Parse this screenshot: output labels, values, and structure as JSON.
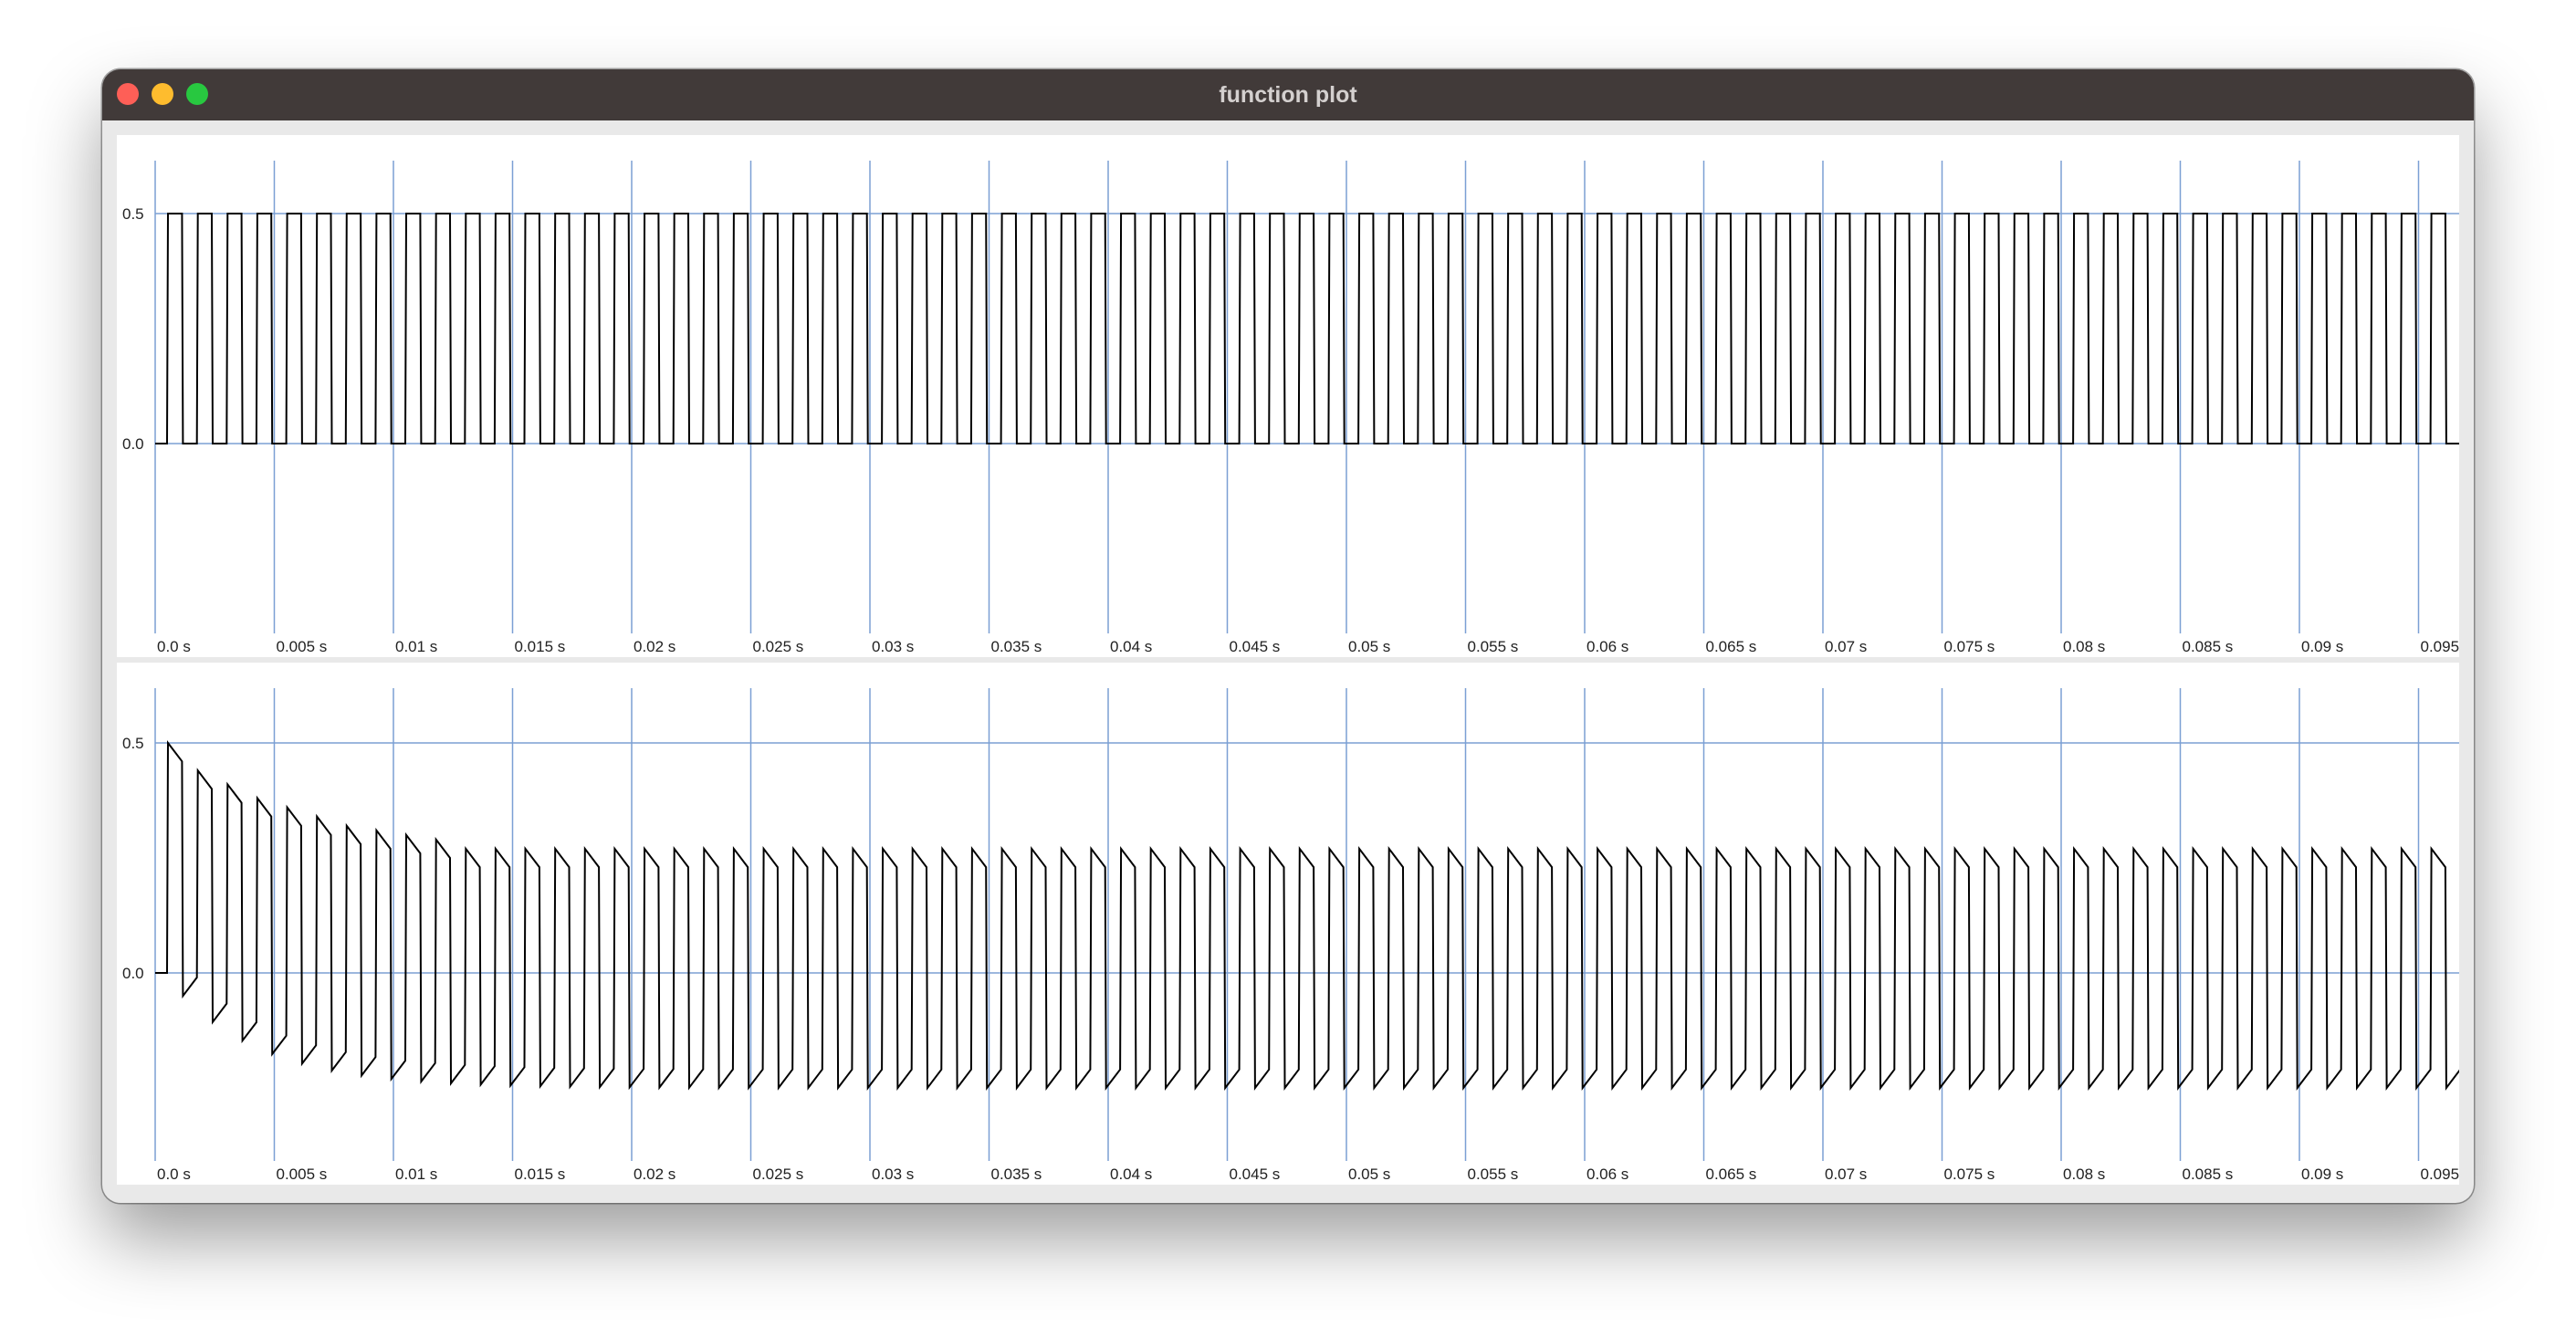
{
  "window": {
    "title": "function plot",
    "controls": [
      "close-button",
      "minimize-button",
      "zoom-button"
    ]
  },
  "colors": {
    "titlebar": "#413a39",
    "grid": "#7b9fd4",
    "trace": "#000000",
    "close": "#fe5f57",
    "minimize": "#febc2e",
    "zoom": "#28c840"
  },
  "chart_data": [
    {
      "type": "line",
      "title": "",
      "x_range": [
        0,
        0.1
      ],
      "y_range": [
        -0.2,
        0.6
      ],
      "x_ticks": [
        0,
        0.005,
        0.01,
        0.015,
        0.02,
        0.025,
        0.03,
        0.035,
        0.04,
        0.045,
        0.05,
        0.055,
        0.06,
        0.065,
        0.07,
        0.075,
        0.08,
        0.085,
        0.09,
        0.095
      ],
      "x_tick_labels": [
        "0.0 s",
        "0.005 s",
        "0.01 s",
        "0.015 s",
        "0.02 s",
        "0.025 s",
        "0.03 s",
        "0.035 s",
        "0.04 s",
        "0.045 s",
        "0.05 s",
        "0.055 s",
        "0.06 s",
        "0.065 s",
        "0.07 s",
        "0.075 s",
        "0.08 s",
        "0.085 s",
        "0.09 s",
        "0.095 s"
      ],
      "y_ticks": [
        0.0,
        0.5
      ],
      "y_tick_labels": [
        "0.0",
        "0.5"
      ],
      "grid": true,
      "series": [
        {
          "signal": "square",
          "start": 0.0005,
          "end": 0.1,
          "period": 0.00125,
          "high_fraction": 0.5,
          "low": 0.0,
          "high": 0.5
        }
      ]
    },
    {
      "type": "line",
      "title": "",
      "x_range": [
        0,
        0.1
      ],
      "y_range": [
        -0.3,
        0.6
      ],
      "x_ticks": [
        0,
        0.005,
        0.01,
        0.015,
        0.02,
        0.025,
        0.03,
        0.035,
        0.04,
        0.045,
        0.05,
        0.055,
        0.06,
        0.065,
        0.07,
        0.075,
        0.08,
        0.085,
        0.09,
        0.095
      ],
      "x_tick_labels": [
        "0.0 s",
        "0.005 s",
        "0.01 s",
        "0.015 s",
        "0.02 s",
        "0.025 s",
        "0.03 s",
        "0.035 s",
        "0.04 s",
        "0.045 s",
        "0.05 s",
        "0.055 s",
        "0.06 s",
        "0.065 s",
        "0.07 s",
        "0.075 s",
        "0.08 s",
        "0.085 s",
        "0.09 s",
        "0.095 s"
      ],
      "y_ticks": [
        0.0,
        0.5
      ],
      "y_tick_labels": [
        "0.0",
        "0.5"
      ],
      "grid": true,
      "series": [
        {
          "signal": "square-highpass-filtered",
          "start": 0.0005,
          "end": 0.1,
          "period": 0.00125,
          "input_high": 0.5,
          "peak_values_start": [
            0.5,
            0.44,
            0.41,
            0.38,
            0.36,
            0.34,
            0.32,
            0.31,
            0.3,
            0.29
          ],
          "steady_high": 0.25,
          "steady_low": -0.25,
          "first_trough": -0.05
        }
      ]
    }
  ]
}
